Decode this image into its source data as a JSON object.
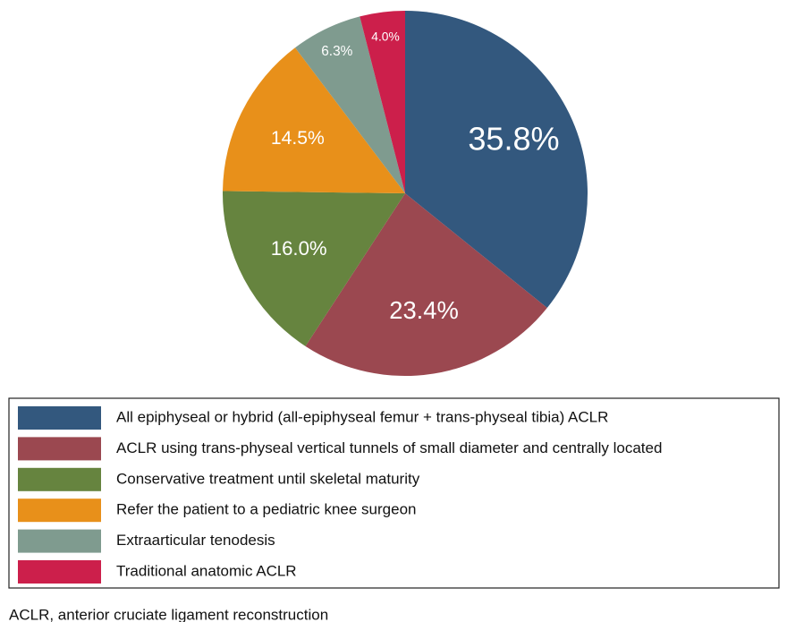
{
  "chart_data": {
    "type": "pie",
    "categories": [
      "All epiphyseal or hybrid (all-epiphyseal femur + trans-physeal tibia) ACLR",
      "ACLR using trans-physeal vertical tunnels of small diameter and centrally located",
      "Conservative treatment until skeletal maturity",
      "Refer the patient to a pediatric knee surgeon",
      "Extraarticular tenodesis",
      "Traditional anatomic ACLR"
    ],
    "values": [
      35.8,
      23.4,
      16.0,
      14.5,
      6.3,
      4.0
    ],
    "value_labels": [
      "35.8%",
      "23.4%",
      "16.0%",
      "14.5%",
      "6.3%",
      "4.0%"
    ],
    "colors": [
      "#33587e",
      "#9b4850",
      "#66843f",
      "#e8901a",
      "#7f9b8f",
      "#cc1f4b"
    ],
    "footnote": "ACLR, anterior cruciate ligament reconstruction"
  }
}
